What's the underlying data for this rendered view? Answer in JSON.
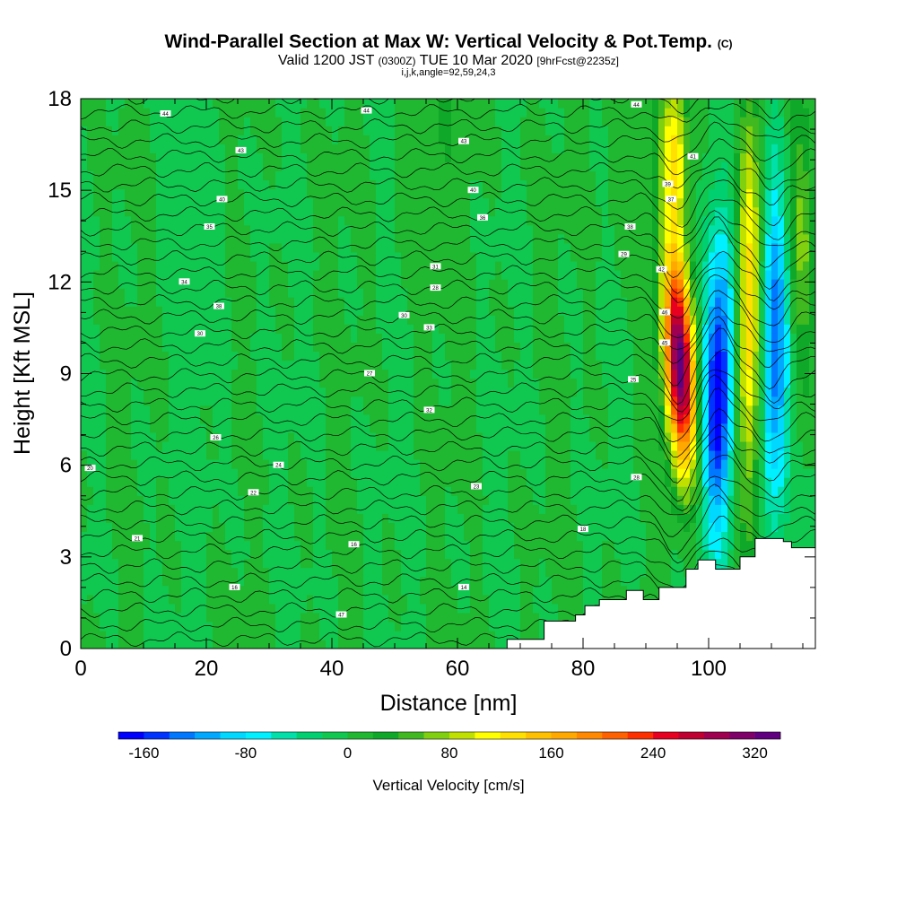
{
  "chart_data": {
    "type": "heatmap",
    "title": "Wind-Parallel Section at Max W: Vertical Velocity & Pot.Temp.",
    "title_suffix": "(C)",
    "subtitle_a": "Valid 1200 JST",
    "subtitle_b": "(0300Z)",
    "subtitle_c": "TUE 10 Mar 2020",
    "subtitle_d": "[9hrFcst@2235z]",
    "subtitle_line2": "i,j,k,angle=92,59,24,3",
    "xlabel": "Distance [nm]",
    "ylabel": "Height [Kft MSL]",
    "xlim": [
      0,
      117
    ],
    "ylim": [
      0,
      18
    ],
    "x_ticks": [
      "0",
      "20",
      "40",
      "60",
      "80",
      "100"
    ],
    "y_ticks": [
      "0",
      "3",
      "6",
      "9",
      "12",
      "15",
      "18"
    ],
    "colorbar": {
      "label": "Vertical Velocity [cm/s]",
      "min": -180,
      "max": 340,
      "ticks": [
        "-160",
        "-80",
        "0",
        "80",
        "160",
        "240",
        "320"
      ],
      "colors": [
        "#0000ff",
        "#0033ff",
        "#0077ff",
        "#00a8ff",
        "#00d8ff",
        "#00f0ff",
        "#00e0a8",
        "#00d070",
        "#10c850",
        "#20b830",
        "#10a828",
        "#40b820",
        "#80d010",
        "#c0e000",
        "#ffff00",
        "#ffe000",
        "#ffc000",
        "#ffa800",
        "#ff8800",
        "#ff6000",
        "#ff3000",
        "#e80020",
        "#c00030",
        "#a00050",
        "#80006a",
        "#600080"
      ]
    },
    "contour_labels": [
      "44",
      "44",
      "44",
      "43",
      "43",
      "40",
      "40",
      "38",
      "38",
      "36",
      "35",
      "34",
      "33",
      "32",
      "31",
      "30",
      "30",
      "29",
      "28",
      "28",
      "27",
      "26",
      "25",
      "24",
      "23",
      "22",
      "21",
      "20",
      "18",
      "16",
      "16",
      "14",
      "47",
      "46",
      "45",
      "42",
      "41",
      "39",
      "37"
    ],
    "terrain": [
      [
        67.9,
        0.3
      ],
      [
        73.8,
        0.9
      ],
      [
        78.8,
        1.1
      ],
      [
        80.3,
        1.4
      ],
      [
        82.6,
        1.6
      ],
      [
        86.9,
        1.9
      ],
      [
        89.6,
        1.6
      ],
      [
        92.1,
        2.0
      ],
      [
        96.4,
        2.6
      ],
      [
        98.3,
        2.9
      ],
      [
        101.1,
        2.6
      ],
      [
        105.0,
        3.0
      ],
      [
        107.4,
        3.6
      ],
      [
        111.9,
        3.5
      ],
      [
        113.2,
        3.3
      ],
      [
        117.0,
        3.3
      ]
    ],
    "updraft_core": {
      "x": 95.5,
      "z": 9.0,
      "max": 340
    },
    "downdraft_core": {
      "x": 101.5,
      "z": 8.0,
      "min": -160
    }
  }
}
